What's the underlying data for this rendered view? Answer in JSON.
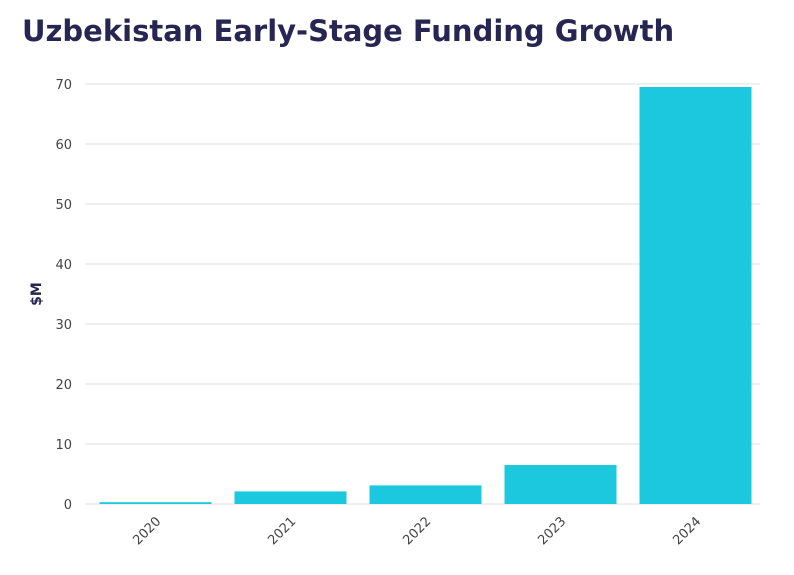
{
  "chart_data": {
    "type": "bar",
    "title": "Uzbekistan Early-Stage Funding Growth",
    "xlabel": "",
    "ylabel": "$M",
    "categories": [
      "2020",
      "2021",
      "2022",
      "2023",
      "2024"
    ],
    "values": [
      0.3,
      2.1,
      3.1,
      6.5,
      69.5
    ],
    "ylim": [
      0,
      70
    ],
    "yticks": [
      0,
      10,
      20,
      30,
      40,
      50,
      60,
      70
    ],
    "grid": true,
    "bar_color": "#1BC8DE"
  }
}
